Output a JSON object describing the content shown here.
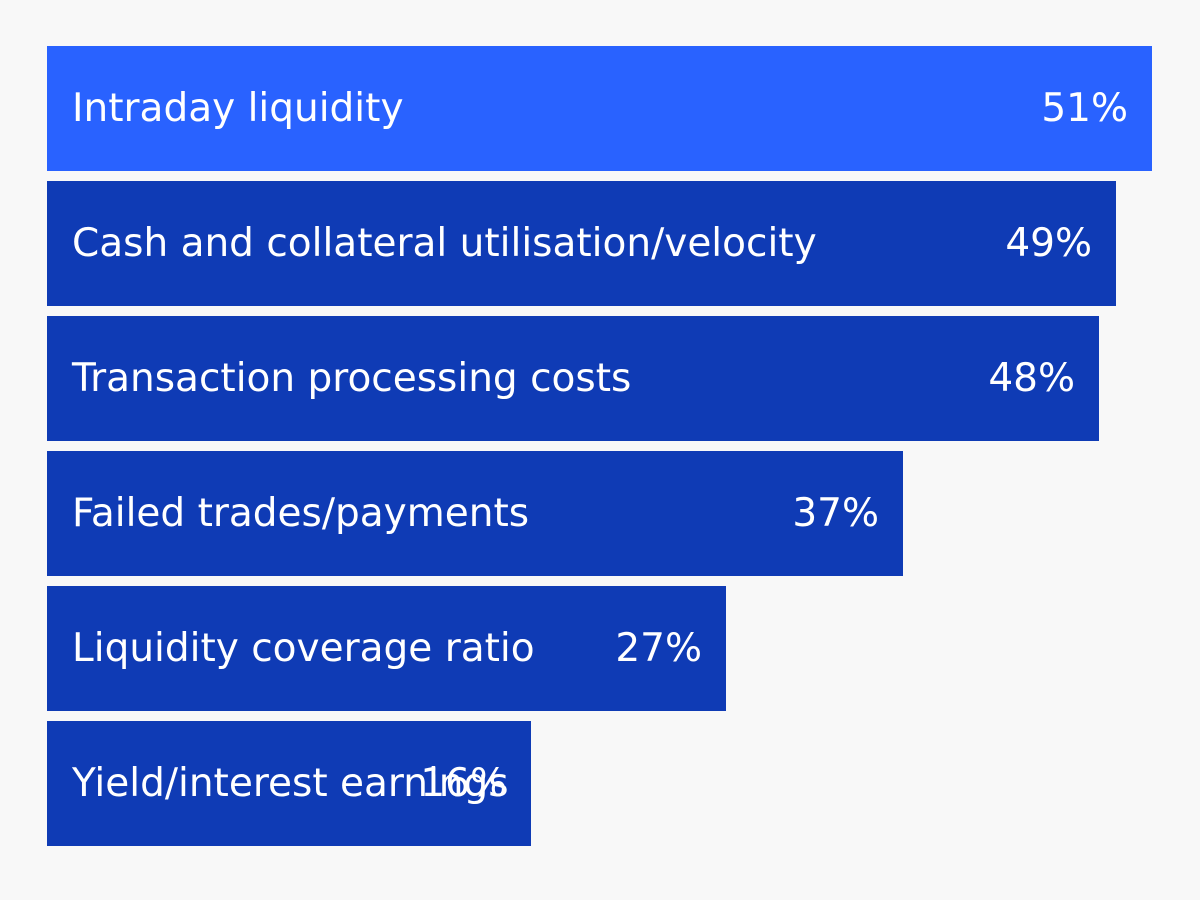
{
  "chart_data": {
    "type": "bar",
    "orientation": "horizontal",
    "title": "",
    "xlabel": "",
    "ylabel": "",
    "categories": [
      "Intraday liquidity",
      "Cash and collateral utilisation/velocity",
      "Transaction processing costs",
      "Failed trades/payments",
      "Liquidity coverage ratio",
      "Yield/interest earnings"
    ],
    "values": [
      51,
      49,
      48,
      37,
      27,
      16
    ],
    "value_labels": [
      "51%",
      "49%",
      "48%",
      "37%",
      "27%",
      "16%"
    ],
    "colors": {
      "highlight": "#2962ff",
      "default": "#0f3bb5",
      "background": "#f8f8f8",
      "text": "#ffffff"
    },
    "highlight_index": 0,
    "grid": false,
    "legend": "none"
  }
}
